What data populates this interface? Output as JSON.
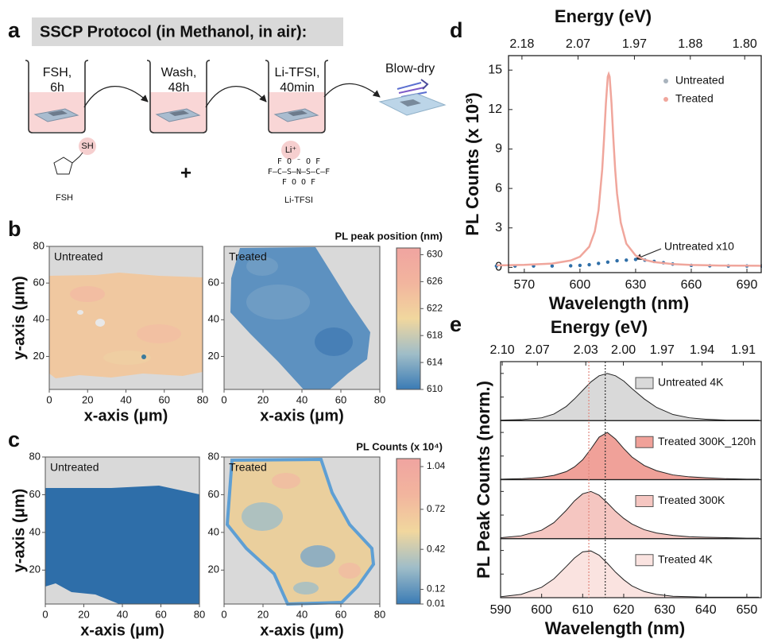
{
  "panel_labels": [
    "a",
    "b",
    "c",
    "d",
    "e"
  ],
  "protocol": {
    "title": "SSCP Protocol (in Methanol, in air):",
    "steps": [
      [
        "FSH,",
        "6h"
      ],
      [
        "Wash,",
        "48h"
      ],
      [
        "Li-TFSI,",
        "40min"
      ]
    ],
    "blow_dry": "Blow-dry",
    "fsh": {
      "group": "SH",
      "name": "FSH"
    },
    "plus": "+",
    "litfsi": {
      "cation": "Li⁺",
      "formula": [
        "F   O  ⁻  O   F",
        "F–C–S–N–S–C–F",
        "F   O      O   F"
      ],
      "name": "Li-TFSI"
    }
  },
  "chart_data": [
    {
      "type": "heatmap",
      "label": "Untreated",
      "xlabel": "x-axis (μm)",
      "ylabel": "y-axis (μm)",
      "xlim": [
        0,
        80
      ],
      "ylim": [
        2,
        80
      ],
      "xticks": [
        0,
        20,
        40,
        60,
        80
      ],
      "yticks": [
        20,
        40,
        60,
        80
      ]
    },
    {
      "type": "heatmap",
      "label": "Treated",
      "xlabel": "x-axis (μm)",
      "xlim": [
        0,
        80
      ],
      "ylim": [
        2,
        80
      ],
      "xticks": [
        0,
        20,
        40,
        60,
        80
      ],
      "yticks": [
        20,
        40,
        60
      ],
      "colorbar": {
        "title": "PL peak position (nm)",
        "lim": [
          610,
          631
        ],
        "ticks": [
          610,
          614,
          618,
          622,
          626,
          630
        ],
        "colors": [
          "#3a7bb5",
          "#9fbdc8",
          "#f1d79e",
          "#f2b59e",
          "#f0a4a0"
        ]
      }
    },
    {
      "type": "heatmap",
      "label": "Untreated",
      "xlabel": "x-axis (μm)",
      "ylabel": "y-axis (μm)",
      "xlim": [
        0,
        80
      ],
      "ylim": [
        2,
        80
      ],
      "xticks": [
        0,
        20,
        40,
        60,
        80
      ],
      "yticks": [
        20,
        40,
        60,
        80
      ]
    },
    {
      "type": "heatmap",
      "label": "Treated",
      "xlabel": "x-axis (μm)",
      "xlim": [
        0,
        80
      ],
      "ylim": [
        2,
        80
      ],
      "xticks": [
        0,
        20,
        40,
        60,
        80
      ],
      "yticks": [
        20,
        40,
        60,
        80
      ],
      "colorbar": {
        "title": "PL Counts (x 10⁴)",
        "lim": [
          0.01,
          1.1
        ],
        "ticks": [
          0.01,
          0.12,
          0.42,
          0.72,
          1.04
        ],
        "colors": [
          "#3a7bb5",
          "#9fbdc8",
          "#f1d79e",
          "#f2b59e",
          "#f0a4a0"
        ]
      }
    },
    {
      "type": "line",
      "xlabel": "Wavelength (nm)",
      "ylabel": "PL Counts (x 10³)",
      "x2label": "Energy (eV)",
      "xlim": [
        561.5,
        697.7
      ],
      "ylim": [
        -0.4,
        16.1
      ],
      "xticks": [
        570,
        600,
        630,
        660,
        690
      ],
      "yticks": [
        0,
        3,
        6,
        9,
        12,
        15
      ],
      "x2ticks": [
        2.18,
        2.07,
        1.97,
        1.88,
        {
          "value": 1.8,
          "label": "1.80"
        }
      ],
      "legend": "upper right",
      "annotation": "Untreated x10",
      "series": [
        {
          "name": "Untreated",
          "color": "#2f6fa8",
          "legend_color": "#a9b3bd",
          "style": "markers",
          "x": [
            555,
            565,
            575,
            585,
            595,
            600,
            605,
            610,
            615,
            620,
            625,
            630,
            635,
            640,
            645,
            650,
            660,
            670,
            680,
            690,
            698
          ],
          "values": [
            0.1,
            0.1,
            0.1,
            0.1,
            0.12,
            0.15,
            0.2,
            0.3,
            0.4,
            0.5,
            0.55,
            0.6,
            0.55,
            0.45,
            0.35,
            0.25,
            0.15,
            0.12,
            0.1,
            0.1,
            0.1
          ]
        },
        {
          "name": "Treated",
          "color": "#f0a69c",
          "style": "line",
          "x": [
            555,
            570,
            585,
            595,
            600,
            605,
            608,
            610,
            612,
            613,
            614,
            615,
            615.5,
            616,
            617,
            618,
            619,
            620,
            622,
            625,
            630,
            635,
            640,
            650,
            660,
            675,
            698
          ],
          "values": [
            0.15,
            0.19,
            0.29,
            0.52,
            0.81,
            1.57,
            2.73,
            4.34,
            7.45,
            9.83,
            12.5,
            14.5,
            14.7,
            14.5,
            12.5,
            9.8,
            7.4,
            5.6,
            3.4,
            1.8,
            0.9,
            0.56,
            0.4,
            0.25,
            0.18,
            0.14,
            0.12
          ]
        }
      ]
    },
    {
      "type": "ridgeline",
      "xlabel": "Wavelength (nm)",
      "ylabel": "PL Peak Counts (norm.)",
      "x2label": "Energy (eV)",
      "xlim": [
        590,
        653.5
      ],
      "ylim": [
        0,
        1.25
      ],
      "xticks": [
        590,
        600,
        610,
        620,
        630,
        640,
        650
      ],
      "x2ticks": [
        {
          "value": 2.1,
          "label": "2.10"
        },
        2.07,
        2.03,
        {
          "value": 2,
          "label": "2.00"
        },
        1.97,
        1.94,
        1.91
      ],
      "reference_lines": [
        {
          "value": 611.5,
          "color": "#e0867c"
        },
        {
          "value": 615.5,
          "color": "#333333"
        }
      ],
      "x": [
        590,
        595,
        600,
        603,
        606,
        608,
        610,
        612,
        614,
        616,
        618,
        620,
        622,
        625,
        628,
        632,
        636,
        640,
        645,
        650,
        653
      ],
      "series": [
        {
          "name": "Untreated 4K",
          "color": "#d9d9d9",
          "values": [
            0.01,
            0.02,
            0.06,
            0.14,
            0.3,
            0.46,
            0.64,
            0.82,
            0.95,
            1,
            0.95,
            0.84,
            0.68,
            0.46,
            0.28,
            0.13,
            0.06,
            0.03,
            0.01,
            0.01,
            0.01
          ]
        },
        {
          "name": "Treated 300K_120h",
          "color": "#f0a199",
          "values": [
            0.01,
            0.02,
            0.05,
            0.09,
            0.17,
            0.27,
            0.42,
            0.65,
            0.9,
            1,
            0.86,
            0.66,
            0.48,
            0.3,
            0.19,
            0.1,
            0.06,
            0.04,
            0.02,
            0.01,
            0.01
          ]
        },
        {
          "name": "Treated 300K",
          "color": "#f5c6c1",
          "values": [
            0.02,
            0.06,
            0.18,
            0.34,
            0.6,
            0.8,
            0.95,
            1,
            0.92,
            0.76,
            0.58,
            0.43,
            0.31,
            0.19,
            0.12,
            0.07,
            0.04,
            0.03,
            0.02,
            0.01,
            0.01
          ]
        },
        {
          "name": "Treated 4K",
          "color": "#fae3e0",
          "values": [
            0.02,
            0.07,
            0.22,
            0.4,
            0.66,
            0.84,
            0.97,
            0.99,
            0.9,
            0.73,
            0.54,
            0.38,
            0.25,
            0.13,
            0.07,
            0.03,
            0.02,
            0.01,
            0.01,
            0.01,
            0.01
          ]
        }
      ]
    }
  ]
}
